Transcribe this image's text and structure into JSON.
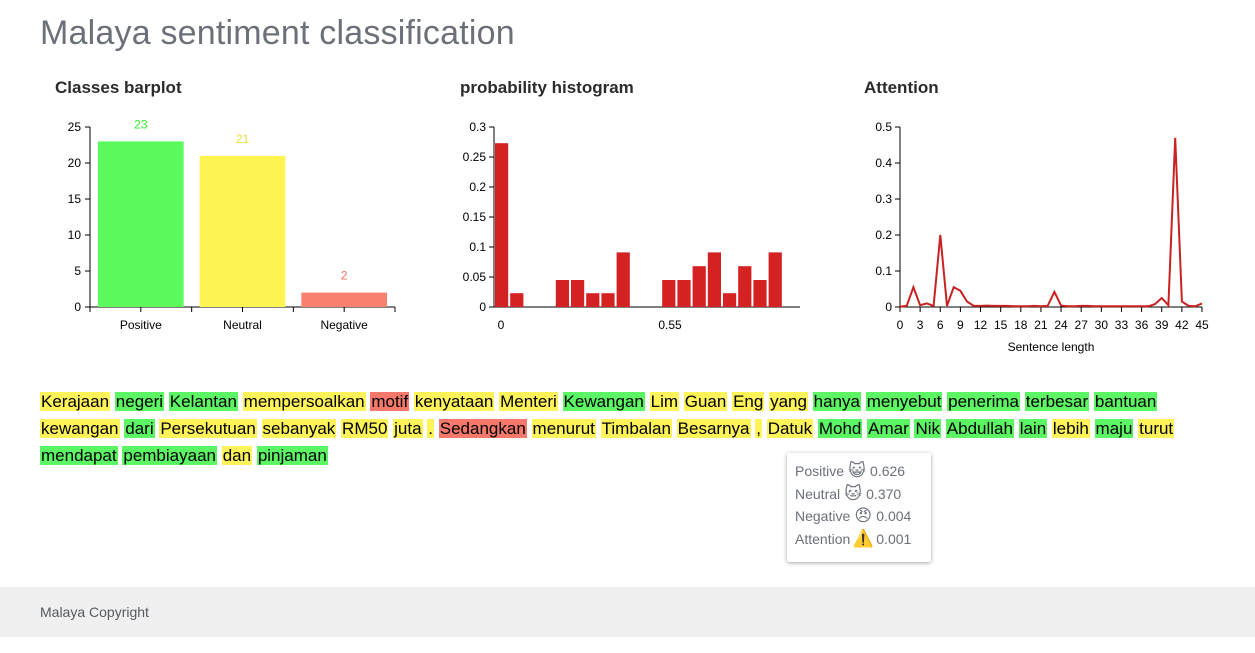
{
  "page": {
    "title": "Malaya sentiment classification"
  },
  "chart_data": [
    {
      "type": "bar",
      "title": "Classes barplot",
      "categories": [
        "Positive",
        "Neutral",
        "Negative"
      ],
      "values": [
        23,
        21,
        2
      ],
      "colors": [
        "#5cfa5c",
        "#fff552",
        "#fa8070"
      ],
      "label_colors": [
        "#33e833",
        "#e8e03a",
        "#f07060"
      ],
      "ylim": [
        0,
        25
      ],
      "yticks": [
        0,
        5,
        10,
        15,
        20,
        25
      ]
    },
    {
      "type": "bar",
      "title": "probability histogram",
      "bin_edges": [
        0,
        0.55
      ],
      "values": [
        0.273,
        0.023,
        0,
        0,
        0.045,
        0.045,
        0.023,
        0.023,
        0.091,
        0,
        0,
        0.045,
        0.045,
        0.068,
        0.091,
        0.023,
        0.068,
        0.045,
        0.091
      ],
      "bar_color": "#d42121",
      "xticks": [
        "0",
        "0.55"
      ],
      "ylim": [
        0,
        0.3
      ],
      "yticks": [
        0,
        0.05,
        0.1,
        0.15,
        0.2,
        0.25,
        0.3
      ]
    },
    {
      "type": "line",
      "title": "Attention",
      "xlabel": "Sentence length",
      "line_color": "#c92222",
      "x": [
        0,
        1,
        2,
        3,
        4,
        5,
        6,
        7,
        8,
        9,
        10,
        11,
        12,
        13,
        14,
        15,
        16,
        17,
        18,
        19,
        20,
        21,
        22,
        23,
        24,
        25,
        26,
        27,
        28,
        29,
        30,
        31,
        32,
        33,
        34,
        35,
        36,
        37,
        38,
        39,
        40,
        41,
        42,
        43,
        44,
        45
      ],
      "y": [
        0.001,
        0.003,
        0.055,
        0.005,
        0.01,
        0.003,
        0.2,
        0.003,
        0.055,
        0.045,
        0.015,
        0.003,
        0.003,
        0.004,
        0.003,
        0.003,
        0.003,
        0.002,
        0.002,
        0.002,
        0.003,
        0.002,
        0.003,
        0.042,
        0.004,
        0.002,
        0.002,
        0.003,
        0.003,
        0.002,
        0.002,
        0.002,
        0.002,
        0.002,
        0.002,
        0.002,
        0.002,
        0.002,
        0.008,
        0.025,
        0.005,
        0.47,
        0.015,
        0.003,
        0.002,
        0.01
      ],
      "xlim": [
        0,
        45
      ],
      "xticks": [
        0,
        3,
        6,
        9,
        12,
        15,
        18,
        21,
        24,
        27,
        30,
        33,
        36,
        39,
        42,
        45
      ],
      "ylim": [
        0,
        0.5
      ],
      "yticks": [
        0,
        0.1,
        0.2,
        0.3,
        0.4,
        0.5
      ]
    }
  ],
  "sentence": [
    {
      "text": "Kerajaan",
      "label": "neutral"
    },
    {
      "text": "negeri",
      "label": "positive"
    },
    {
      "text": "Kelantan",
      "label": "positive"
    },
    {
      "text": "mempersoalkan",
      "label": "neutral"
    },
    {
      "text": "motif",
      "label": "negative"
    },
    {
      "text": "kenyataan",
      "label": "neutral"
    },
    {
      "text": "Menteri",
      "label": "neutral"
    },
    {
      "text": "Kewangan",
      "label": "positive"
    },
    {
      "text": "Lim",
      "label": "neutral"
    },
    {
      "text": "Guan",
      "label": "neutral"
    },
    {
      "text": "Eng",
      "label": "neutral"
    },
    {
      "text": "yang",
      "label": "neutral"
    },
    {
      "text": "hanya",
      "label": "positive"
    },
    {
      "text": "menyebut",
      "label": "positive"
    },
    {
      "text": "penerima",
      "label": "positive"
    },
    {
      "text": "terbesar",
      "label": "positive"
    },
    {
      "text": "bantuan",
      "label": "positive"
    },
    {
      "text": "kewangan",
      "label": "neutral"
    },
    {
      "text": "dari",
      "label": "positive"
    },
    {
      "text": "Persekutuan",
      "label": "neutral"
    },
    {
      "text": "sebanyak",
      "label": "neutral"
    },
    {
      "text": "RM50",
      "label": "neutral"
    },
    {
      "text": "juta",
      "label": "neutral"
    },
    {
      "text": ".",
      "label": "neutral"
    },
    {
      "text": "Sedangkan",
      "label": "negative"
    },
    {
      "text": "menurut",
      "label": "neutral"
    },
    {
      "text": "Timbalan",
      "label": "neutral"
    },
    {
      "text": "Besarnya",
      "label": "neutral"
    },
    {
      "text": ",",
      "label": "neutral"
    },
    {
      "text": "Datuk",
      "label": "neutral"
    },
    {
      "text": "Mohd",
      "label": "positive"
    },
    {
      "text": "Amar",
      "label": "positive"
    },
    {
      "text": "Nik",
      "label": "positive"
    },
    {
      "text": "Abdullah",
      "label": "positive"
    },
    {
      "text": "lain",
      "label": "positive"
    },
    {
      "text": "lebih",
      "label": "neutral"
    },
    {
      "text": "maju",
      "label": "positive"
    },
    {
      "text": "turut",
      "label": "neutral"
    },
    {
      "text": "mendapat",
      "label": "positive"
    },
    {
      "text": "pembiayaan",
      "label": "positive"
    },
    {
      "text": "dan",
      "label": "neutral"
    },
    {
      "text": "pinjaman",
      "label": "positive"
    }
  ],
  "tooltip": {
    "rows": [
      {
        "label": "Positive",
        "icon": "grinning-cat-icon",
        "emoji": "😺",
        "value": "0.626"
      },
      {
        "label": "Neutral",
        "icon": "cat-face-icon",
        "emoji": "🐱",
        "value": "0.370"
      },
      {
        "label": "Negative",
        "icon": "angry-face-icon",
        "emoji": "😠",
        "value": "0.004"
      },
      {
        "label": "Attention",
        "icon": "warning-icon",
        "emoji": "⚠️",
        "value": "0.001"
      }
    ]
  },
  "footer": {
    "text": "Malaya Copyright"
  }
}
